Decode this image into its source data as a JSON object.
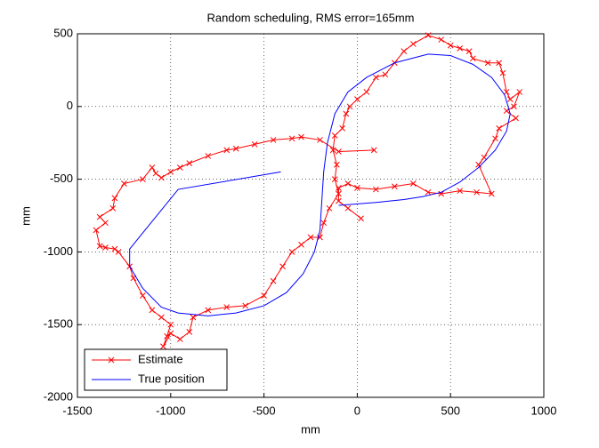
{
  "chart_data": {
    "type": "line",
    "title": "Random scheduling, RMS error=165mm",
    "xlabel": "mm",
    "ylabel": "mm",
    "xlim": [
      -1500,
      1000
    ],
    "ylim": [
      -2000,
      500
    ],
    "xticks": [
      -1500,
      -1000,
      -500,
      0,
      500,
      1000
    ],
    "yticks": [
      -2000,
      -1500,
      -1000,
      -500,
      0,
      500
    ],
    "grid": true,
    "legend": "lower left",
    "series": [
      {
        "name": "Estimate",
        "color": "#ff0000",
        "marker": "x",
        "x": [
          90,
          -100,
          -200,
          -300,
          -350,
          -450,
          -550,
          -650,
          -700,
          -800,
          -900,
          -950,
          -1000,
          -1050,
          -1080,
          -1100,
          -1150,
          -1250,
          -1300,
          -1310,
          -1380,
          -1350,
          -1400,
          -1380,
          -1350,
          -1300,
          -1280,
          -1220,
          -1200,
          -1150,
          -1100,
          -1050,
          -1000,
          -1020,
          -1040,
          -1000,
          -950,
          -900,
          -880,
          -800,
          -700,
          -600,
          -500,
          -450,
          -400,
          -350,
          -300,
          -250,
          -200,
          -180,
          -150,
          -100,
          -120,
          -110,
          -130,
          -120,
          -80,
          -60,
          -40,
          0,
          50,
          100,
          150,
          200,
          250,
          300,
          380,
          450,
          500,
          550,
          600,
          620,
          700,
          760,
          780,
          800,
          820,
          870,
          840,
          800,
          850,
          760,
          740,
          680,
          650,
          720,
          640,
          550,
          450,
          380,
          300,
          200,
          100,
          0,
          -50,
          -100,
          -100,
          -50,
          20
        ],
        "values": [
          -300,
          -310,
          -230,
          -210,
          -220,
          -230,
          -260,
          -290,
          -300,
          -340,
          -390,
          -420,
          -450,
          -490,
          -460,
          -420,
          -500,
          -530,
          -630,
          -700,
          -760,
          -800,
          -850,
          -960,
          -970,
          -980,
          -1000,
          -1100,
          -1180,
          -1300,
          -1400,
          -1450,
          -1500,
          -1580,
          -1650,
          -1560,
          -1600,
          -1550,
          -1450,
          -1400,
          -1380,
          -1370,
          -1300,
          -1200,
          -1100,
          -1000,
          -950,
          -900,
          -900,
          -800,
          -700,
          -600,
          -500,
          -400,
          -300,
          -200,
          -150,
          -50,
          0,
          50,
          100,
          200,
          220,
          300,
          380,
          430,
          490,
          460,
          420,
          400,
          380,
          330,
          300,
          300,
          230,
          100,
          50,
          100,
          0,
          -30,
          -80,
          -150,
          -220,
          -350,
          -400,
          -600,
          -590,
          -580,
          -600,
          -590,
          -530,
          -550,
          -570,
          -560,
          -530,
          -560,
          -650,
          -700,
          -770
        ]
      },
      {
        "name": "True position",
        "color": "#0000ff",
        "x": [
          -410,
          -960,
          -1220,
          -1220,
          -1150,
          -1050,
          -960,
          -800,
          -650,
          -500,
          -380,
          -290,
          -230,
          -200,
          -190,
          -180,
          -160,
          -120,
          -50,
          50,
          200,
          380,
          500,
          620,
          720,
          790,
          820,
          800,
          740,
          650,
          550,
          450,
          350,
          250,
          100,
          -100
        ],
        "values": [
          -450,
          -570,
          -980,
          -1100,
          -1250,
          -1380,
          -1420,
          -1440,
          -1420,
          -1370,
          -1280,
          -1150,
          -1000,
          -850,
          -650,
          -450,
          -250,
          -50,
          100,
          200,
          300,
          360,
          350,
          290,
          200,
          80,
          -50,
          -170,
          -300,
          -420,
          -520,
          -590,
          -620,
          -640,
          -660,
          -680
        ]
      }
    ]
  }
}
